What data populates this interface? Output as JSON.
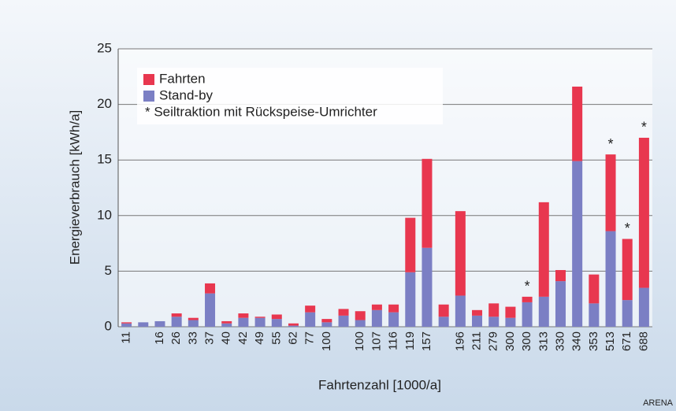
{
  "chart_data": {
    "type": "stacked_bar",
    "y_label": "Energieverbrauch [kWh/a]",
    "x_label": "Fahrtenzahl [1000/a]",
    "categories": [
      "11",
      null,
      "16",
      "26",
      "33",
      "37",
      "40",
      "42",
      "49",
      "55",
      "62",
      "77",
      "100",
      null,
      "100",
      "107",
      "116",
      "119",
      "157",
      null,
      "196",
      "211",
      "279",
      "300",
      "300",
      "313",
      "330",
      "340",
      "353",
      "513",
      "671",
      "688"
    ],
    "series": [
      {
        "name": "Stand-by",
        "color": "#7b7fc4",
        "values": [
          0.3,
          0.4,
          0.5,
          0.9,
          0.6,
          3.0,
          0.3,
          0.8,
          0.8,
          0.7,
          0.1,
          1.3,
          0.4,
          1.0,
          0.6,
          1.5,
          1.3,
          4.9,
          7.1,
          0.9,
          2.8,
          1.0,
          0.9,
          0.8,
          2.2,
          2.7,
          4.1,
          14.9,
          2.1,
          8.6,
          2.4,
          3.5
        ]
      },
      {
        "name": "Fahrten",
        "color": "#e8374f",
        "values": [
          0.1,
          0,
          0,
          0.3,
          0.2,
          0.9,
          0.2,
          0.4,
          0.1,
          0.4,
          0.2,
          0.6,
          0.3,
          0.6,
          0.8,
          0.5,
          0.7,
          4.9,
          8.0,
          1.1,
          7.6,
          0.5,
          1.2,
          1.0,
          0.5,
          8.5,
          1.0,
          6.7,
          2.6,
          6.9,
          5.5,
          13.5
        ]
      }
    ],
    "legend_order": [
      1,
      0
    ],
    "legend_note": "* Seiltraktion mit Rückspeise-Umrichter",
    "annotations": [
      {
        "index": 24,
        "text": "*"
      },
      {
        "index": 29,
        "text": "*"
      },
      {
        "index": 30,
        "text": "*"
      },
      {
        "index": 31,
        "text": "*"
      }
    ],
    "legend": "upper left",
    "ylim": [
      0,
      25
    ],
    "yticks": [
      0,
      5,
      10,
      15,
      20,
      25
    ],
    "grid": true,
    "credit": "ARENA"
  }
}
